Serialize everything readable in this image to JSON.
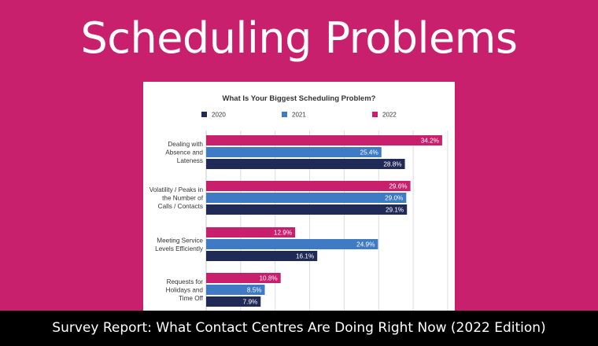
{
  "banner": {
    "title": "Scheduling Problems"
  },
  "footer": {
    "text": "Survey Report: What Contact Centres Are Doing Right Now (2022 Edition)"
  },
  "colors": {
    "background": "#C9206E",
    "y2020": "#1F2A56",
    "y2021": "#3E7BC4",
    "y2022": "#C9206E"
  },
  "chart_data": {
    "type": "bar",
    "orientation": "horizontal",
    "title": "What Is Your Biggest Scheduling Problem?",
    "categories": [
      [
        "Dealing with",
        "Absence and",
        "Lateness"
      ],
      [
        "Volatility / Peaks in",
        "the Number of",
        "Calls / Contacts"
      ],
      [
        "Meeting Service",
        "Levels Efficiently"
      ],
      [
        "Requests for",
        "Holidays and",
        "Time Off"
      ]
    ],
    "series": [
      {
        "name": "2022",
        "color": "#C9206E",
        "values": [
          34.2,
          29.6,
          12.9,
          10.8
        ],
        "labels": [
          "34.2%",
          "29.6%",
          "12.9%",
          "10.8%"
        ]
      },
      {
        "name": "2021",
        "color": "#3E7BC4",
        "values": [
          25.4,
          29.0,
          24.9,
          8.5
        ],
        "labels": [
          "25.4%",
          "29.0%",
          "24.9%",
          "8.5%"
        ]
      },
      {
        "name": "2020",
        "color": "#1F2A56",
        "values": [
          28.8,
          29.1,
          16.1,
          7.9
        ],
        "labels": [
          "28.8%",
          "29.1%",
          "16.1%",
          "7.9%"
        ]
      }
    ],
    "legend": {
      "placement": "top",
      "order": [
        "2020",
        "2021",
        "2022"
      ]
    },
    "xlim": [
      0,
      35
    ],
    "grid": true
  }
}
